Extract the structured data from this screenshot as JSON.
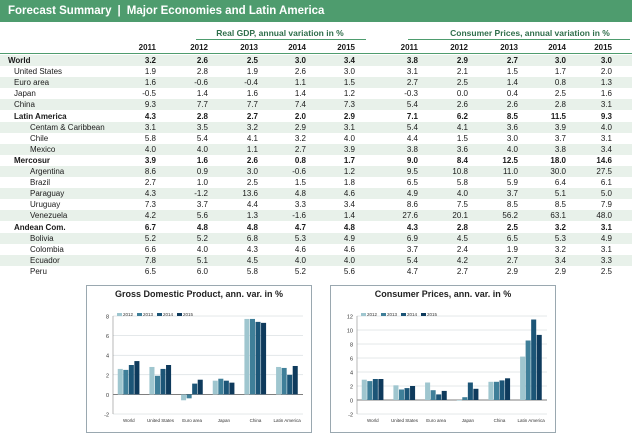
{
  "header": {
    "left": "Forecast Summary",
    "sep": "|",
    "right": "Major Economies and Latin America"
  },
  "table": {
    "gdp_title": "Real GDP, annual variation in %",
    "cpi_title": "Consumer Prices, annual variation in %",
    "years": [
      "2011",
      "2012",
      "2013",
      "2014",
      "2015"
    ],
    "rows": [
      {
        "label": "World",
        "indent": 0,
        "bold": true,
        "shade": true,
        "gdp": [
          "3.2",
          "2.6",
          "2.5",
          "3.0",
          "3.4"
        ],
        "cpi": [
          "3.8",
          "2.9",
          "2.7",
          "3.0",
          "3.0"
        ]
      },
      {
        "label": "United States",
        "indent": 1,
        "bold": false,
        "shade": false,
        "gdp": [
          "1.9",
          "2.8",
          "1.9",
          "2.6",
          "3.0"
        ],
        "cpi": [
          "3.1",
          "2.1",
          "1.5",
          "1.7",
          "2.0"
        ]
      },
      {
        "label": "Euro area",
        "indent": 1,
        "bold": false,
        "shade": true,
        "gdp": [
          "1.6",
          "-0.6",
          "-0.4",
          "1.1",
          "1.5"
        ],
        "cpi": [
          "2.7",
          "2.5",
          "1.4",
          "0.8",
          "1.3"
        ]
      },
      {
        "label": "Japan",
        "indent": 1,
        "bold": false,
        "shade": false,
        "gdp": [
          "-0.5",
          "1.4",
          "1.6",
          "1.4",
          "1.2"
        ],
        "cpi": [
          "-0.3",
          "0.0",
          "0.4",
          "2.5",
          "1.6"
        ]
      },
      {
        "label": "China",
        "indent": 1,
        "bold": false,
        "shade": true,
        "gdp": [
          "9.3",
          "7.7",
          "7.7",
          "7.4",
          "7.3"
        ],
        "cpi": [
          "5.4",
          "2.6",
          "2.6",
          "2.8",
          "3.1"
        ]
      },
      {
        "label": "Latin America",
        "indent": 1,
        "bold": true,
        "shade": false,
        "gdp": [
          "4.3",
          "2.8",
          "2.7",
          "2.0",
          "2.9"
        ],
        "cpi": [
          "7.1",
          "6.2",
          "8.5",
          "11.5",
          "9.3"
        ]
      },
      {
        "label": "Centam & Caribbean",
        "indent": 2,
        "bold": false,
        "shade": true,
        "gdp": [
          "3.1",
          "3.5",
          "3.2",
          "2.9",
          "3.1"
        ],
        "cpi": [
          "5.4",
          "4.1",
          "3.6",
          "3.9",
          "4.0"
        ]
      },
      {
        "label": "Chile",
        "indent": 2,
        "bold": false,
        "shade": false,
        "gdp": [
          "5.8",
          "5.4",
          "4.1",
          "3.2",
          "4.0"
        ],
        "cpi": [
          "4.4",
          "1.5",
          "3.0",
          "3.7",
          "3.1"
        ]
      },
      {
        "label": "Mexico",
        "indent": 2,
        "bold": false,
        "shade": true,
        "gdp": [
          "4.0",
          "4.0",
          "1.1",
          "2.7",
          "3.9"
        ],
        "cpi": [
          "3.8",
          "3.6",
          "4.0",
          "3.8",
          "3.4"
        ]
      },
      {
        "label": "Mercosur",
        "indent": 1,
        "bold": true,
        "shade": false,
        "gdp": [
          "3.9",
          "1.6",
          "2.6",
          "0.8",
          "1.7"
        ],
        "cpi": [
          "9.0",
          "8.4",
          "12.5",
          "18.0",
          "14.6"
        ]
      },
      {
        "label": "Argentina",
        "indent": 2,
        "bold": false,
        "shade": true,
        "gdp": [
          "8.6",
          "0.9",
          "3.0",
          "-0.6",
          "1.2"
        ],
        "cpi": [
          "9.5",
          "10.8",
          "11.0",
          "30.0",
          "27.5"
        ]
      },
      {
        "label": "Brazil",
        "indent": 2,
        "bold": false,
        "shade": false,
        "gdp": [
          "2.7",
          "1.0",
          "2.5",
          "1.5",
          "1.8"
        ],
        "cpi": [
          "6.5",
          "5.8",
          "5.9",
          "6.4",
          "6.1"
        ]
      },
      {
        "label": "Paraguay",
        "indent": 2,
        "bold": false,
        "shade": true,
        "gdp": [
          "4.3",
          "-1.2",
          "13.6",
          "4.8",
          "4.6"
        ],
        "cpi": [
          "4.9",
          "4.0",
          "3.7",
          "5.1",
          "5.0"
        ]
      },
      {
        "label": "Uruguay",
        "indent": 2,
        "bold": false,
        "shade": false,
        "gdp": [
          "7.3",
          "3.7",
          "4.4",
          "3.3",
          "3.4"
        ],
        "cpi": [
          "8.6",
          "7.5",
          "8.5",
          "8.5",
          "7.9"
        ]
      },
      {
        "label": "Venezuela",
        "indent": 2,
        "bold": false,
        "shade": true,
        "gdp": [
          "4.2",
          "5.6",
          "1.3",
          "-1.6",
          "1.4"
        ],
        "cpi": [
          "27.6",
          "20.1",
          "56.2",
          "63.1",
          "48.0"
        ]
      },
      {
        "label": "Andean Com.",
        "indent": 1,
        "bold": true,
        "shade": false,
        "gdp": [
          "6.7",
          "4.8",
          "4.8",
          "4.7",
          "4.8"
        ],
        "cpi": [
          "4.3",
          "2.8",
          "2.5",
          "3.2",
          "3.1"
        ]
      },
      {
        "label": "Bolivia",
        "indent": 2,
        "bold": false,
        "shade": true,
        "gdp": [
          "5.2",
          "5.2",
          "6.8",
          "5.3",
          "4.9"
        ],
        "cpi": [
          "6.9",
          "4.5",
          "6.5",
          "5.3",
          "4.9"
        ]
      },
      {
        "label": "Colombia",
        "indent": 2,
        "bold": false,
        "shade": false,
        "gdp": [
          "6.6",
          "4.0",
          "4.3",
          "4.6",
          "4.6"
        ],
        "cpi": [
          "3.7",
          "2.4",
          "1.9",
          "3.2",
          "3.1"
        ]
      },
      {
        "label": "Ecuador",
        "indent": 2,
        "bold": false,
        "shade": true,
        "gdp": [
          "7.8",
          "5.1",
          "4.5",
          "4.0",
          "4.0"
        ],
        "cpi": [
          "5.4",
          "4.2",
          "2.7",
          "3.4",
          "3.3"
        ]
      },
      {
        "label": "Peru",
        "indent": 2,
        "bold": false,
        "shade": false,
        "gdp": [
          "6.5",
          "6.0",
          "5.8",
          "5.2",
          "5.6"
        ],
        "cpi": [
          "4.7",
          "2.7",
          "2.9",
          "2.9",
          "2.5"
        ]
      }
    ]
  },
  "colors": {
    "header_bg": "#4e9c6e",
    "s2011": "#cfe3e6",
    "s2012": "#9fc6cf",
    "s2013": "#3f7f99",
    "s2014": "#1c5577",
    "s2015": "#0e3a5c"
  },
  "chart_data": [
    {
      "type": "bar",
      "title": "Gross Domestic Product, ann. var. in %",
      "categories": [
        "World",
        "United States",
        "Euro area",
        "Japan",
        "China",
        "Latin America"
      ],
      "series": [
        {
          "name": "2012",
          "values": [
            2.6,
            2.8,
            -0.6,
            1.4,
            7.7,
            2.8
          ]
        },
        {
          "name": "2013",
          "values": [
            2.5,
            1.9,
            -0.4,
            1.6,
            7.7,
            2.7
          ]
        },
        {
          "name": "2014",
          "values": [
            3.0,
            2.6,
            1.1,
            1.4,
            7.4,
            2.0
          ]
        },
        {
          "name": "2015",
          "values": [
            3.4,
            3.0,
            1.5,
            1.2,
            7.3,
            2.9
          ]
        }
      ],
      "ylim": [
        -2,
        8
      ],
      "yticks": [
        "-2",
        "0",
        "2",
        "4",
        "6",
        "8"
      ],
      "grid": true,
      "legend": "top-left"
    },
    {
      "type": "bar",
      "title": "Consumer Prices, ann. var. in %",
      "categories": [
        "World",
        "United States",
        "Euro area",
        "Japan",
        "China",
        "Latin America"
      ],
      "series": [
        {
          "name": "2012",
          "values": [
            2.9,
            2.1,
            2.5,
            0.0,
            2.6,
            6.2
          ]
        },
        {
          "name": "2013",
          "values": [
            2.7,
            1.5,
            1.4,
            0.4,
            2.6,
            8.5
          ]
        },
        {
          "name": "2014",
          "values": [
            3.0,
            1.7,
            0.8,
            2.5,
            2.8,
            11.5
          ]
        },
        {
          "name": "2015",
          "values": [
            3.0,
            2.0,
            1.3,
            1.6,
            3.1,
            9.3
          ]
        }
      ],
      "ylim": [
        -2,
        12
      ],
      "yticks": [
        "-2",
        "0",
        "2",
        "4",
        "6",
        "8",
        "10",
        "12"
      ],
      "grid": true,
      "legend": "top-left"
    }
  ]
}
